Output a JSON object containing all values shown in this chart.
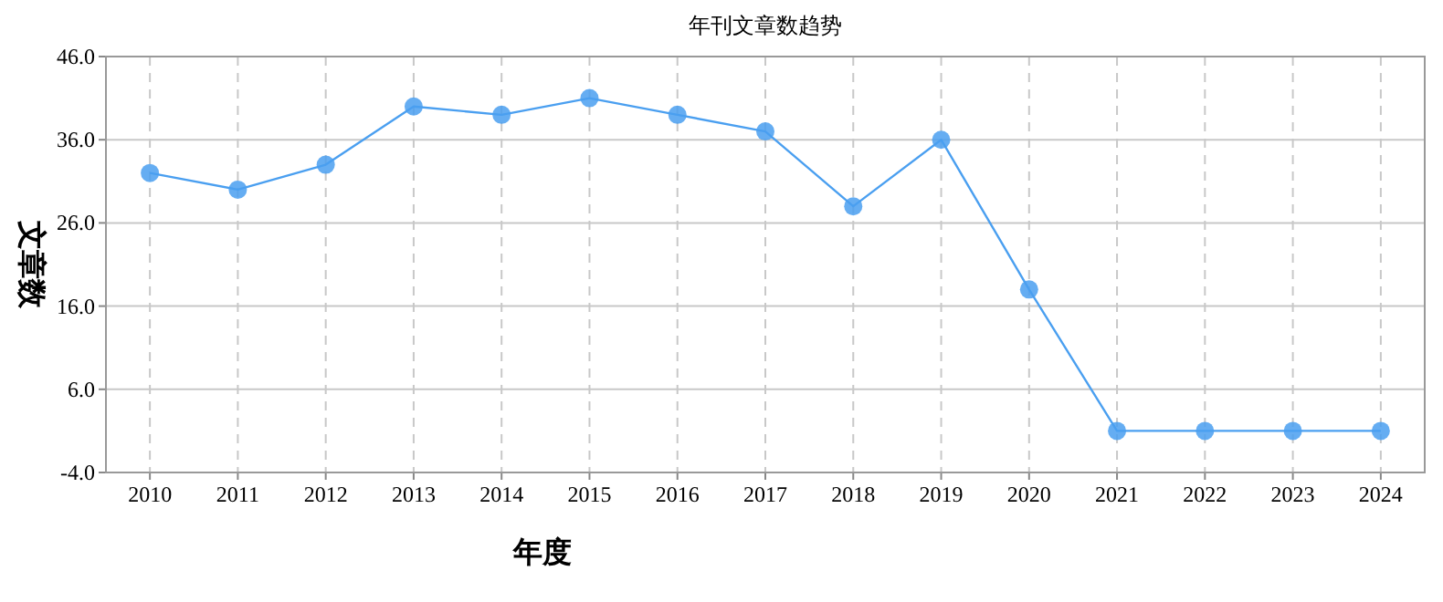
{
  "chart_data": {
    "type": "line",
    "title": "年刊文章数趋势",
    "xlabel": "年度",
    "ylabel": "文章数",
    "categories": [
      "2010",
      "2011",
      "2012",
      "2013",
      "2014",
      "2015",
      "2016",
      "2017",
      "2018",
      "2019",
      "2020",
      "2021",
      "2022",
      "2023",
      "2024"
    ],
    "series": [
      {
        "color": "#4a9ff0",
        "values": [
          32,
          30,
          33,
          40,
          39,
          41,
          39,
          37,
          28,
          36,
          18,
          1,
          1,
          1,
          1
        ]
      }
    ],
    "ylim": [
      -4,
      46
    ],
    "yticks": [
      {
        "value": -4,
        "label": "-4.0"
      },
      {
        "value": 6,
        "label": "6.0"
      },
      {
        "value": 16,
        "label": "16.0"
      },
      {
        "value": 26,
        "label": "26.0"
      },
      {
        "value": 36,
        "label": "36.0"
      },
      {
        "value": 46,
        "label": "46.0"
      }
    ],
    "grid": true,
    "marker": "circle",
    "line_style": "solid"
  }
}
